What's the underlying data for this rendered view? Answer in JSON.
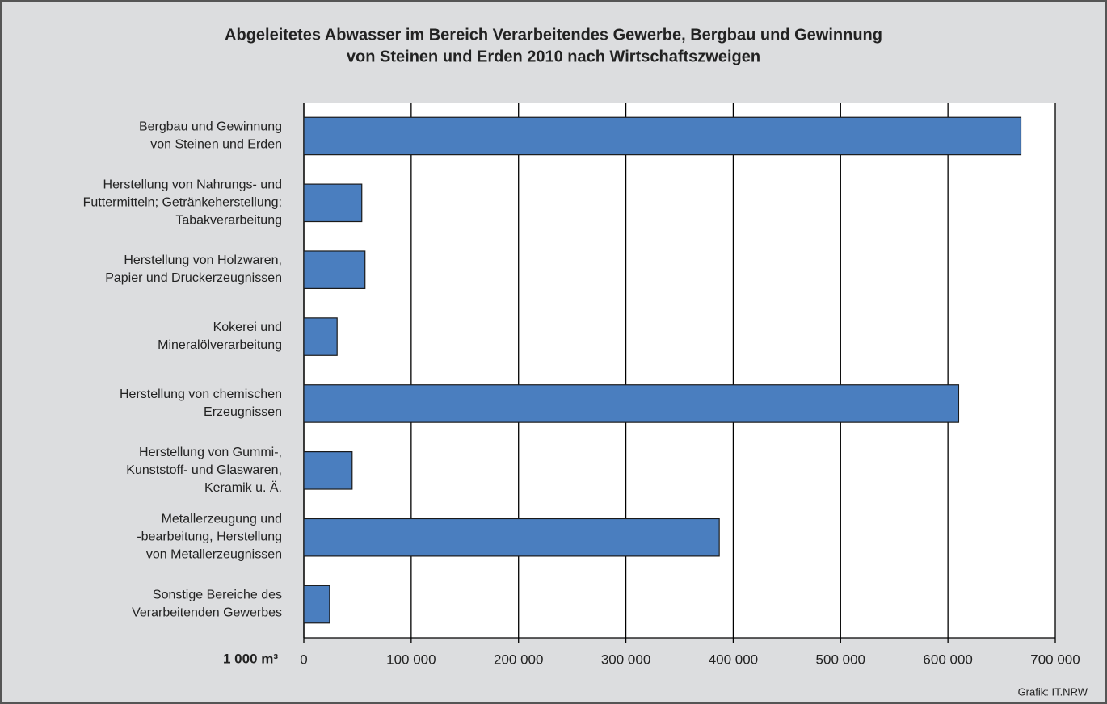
{
  "chart_data": {
    "type": "bar",
    "orientation": "horizontal",
    "title": [
      "Abgeleitetes Abwasser  im Bereich Verarbeitendes Gewerbe, Bergbau und Gewinnung",
      "von Steinen und Erden 2010 nach Wirtschaftszweigen"
    ],
    "categories": [
      [
        "Bergbau und Gewinnung",
        "von Steinen und Erden"
      ],
      [
        "Herstellung von Nahrungs- und",
        "Futtermitteln; Getränkeherstellung;",
        "Tabakverarbeitung"
      ],
      [
        "Herstellung von Holzwaren,",
        "Papier und Druckerzeugnissen"
      ],
      [
        "Kokerei und",
        "Mineralölverarbeitung"
      ],
      [
        "Herstellung von chemischen",
        "Erzeugnissen"
      ],
      [
        "Herstellung von Gummi-,",
        "Kunststoff- und Glaswaren,",
        "Keramik  u. Ä."
      ],
      [
        "Metallerzeugung und",
        "-bearbeitung, Herstellung",
        "von Metallerzeugnissen"
      ],
      [
        "Sonstige Bereiche des",
        "Verarbeitenden Gewerbes"
      ]
    ],
    "values": [
      668000,
      54000,
      57000,
      31000,
      610000,
      45000,
      387000,
      24000
    ],
    "color": "#4a7ebf",
    "xlabel": "1 000 m³",
    "xlim": [
      0,
      700000
    ],
    "xticks": [
      0,
      {
        "value": 100000,
        "label": "100 000"
      },
      {
        "value": 200000,
        "label": "200 000"
      },
      {
        "value": 300000,
        "label": "300 000"
      },
      {
        "value": 400000,
        "label": "400 000"
      },
      {
        "value": 500000,
        "label": "500 000"
      },
      {
        "value": 600000,
        "label": "600 000"
      },
      {
        "value": 700000,
        "label": "700 000"
      }
    ],
    "grid": true,
    "source": "Grafik: IT.NRW"
  }
}
